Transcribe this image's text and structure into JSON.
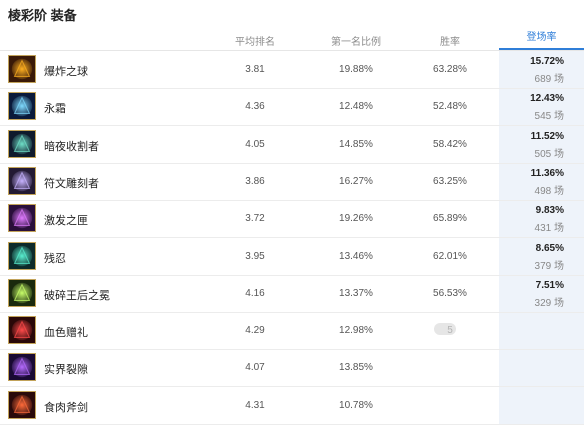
{
  "page": {
    "title": "棱彩阶 装备"
  },
  "columns": {
    "avg_rank": "平均排名",
    "first_rate": "第一名比例",
    "win_rate": "胜率",
    "pick_rate": "登场率"
  },
  "items": [
    {
      "name": "爆炸之球",
      "avg_rank": "3.81",
      "first_rate": "19.88%",
      "win_rate": "63.28%",
      "pick_rate": "15.72%",
      "games": "689 场",
      "icon": "explosion-orb-icon",
      "colors": [
        "#3a1a08",
        "#ffb020"
      ]
    },
    {
      "name": "永霜",
      "avg_rank": "4.36",
      "first_rate": "12.48%",
      "win_rate": "52.48%",
      "pick_rate": "12.43%",
      "games": "545 场",
      "icon": "everfrost-icon",
      "colors": [
        "#0a1a3a",
        "#7fdcff"
      ]
    },
    {
      "name": "暗夜收割者",
      "avg_rank": "4.05",
      "first_rate": "14.85%",
      "win_rate": "58.42%",
      "pick_rate": "11.52%",
      "games": "505 场",
      "icon": "night-harvester-icon",
      "colors": [
        "#0f1a2c",
        "#6fe0c8"
      ]
    },
    {
      "name": "符文雕刻者",
      "avg_rank": "3.86",
      "first_rate": "16.27%",
      "win_rate": "63.25%",
      "pick_rate": "11.36%",
      "games": "498 场",
      "icon": "runecarver-icon",
      "colors": [
        "#231a33",
        "#c7b3ff"
      ]
    },
    {
      "name": "激发之匣",
      "avg_rank": "3.72",
      "first_rate": "19.26%",
      "win_rate": "65.89%",
      "pick_rate": "9.83%",
      "games": "431 场",
      "icon": "radiant-box-icon",
      "colors": [
        "#2a0f3a",
        "#e07bff"
      ]
    },
    {
      "name": "残忍",
      "avg_rank": "3.95",
      "first_rate": "13.46%",
      "win_rate": "62.01%",
      "pick_rate": "8.65%",
      "games": "379 场",
      "icon": "cruelty-icon",
      "colors": [
        "#0d2a2a",
        "#59f0d0"
      ]
    },
    {
      "name": "破碎王后之冕",
      "avg_rank": "4.16",
      "first_rate": "13.37%",
      "win_rate": "56.53%",
      "pick_rate": "7.51%",
      "games": "329 场",
      "icon": "shattered-crown-icon",
      "colors": [
        "#1a2a0d",
        "#c8ff6a"
      ]
    },
    {
      "name": "血色赠礼",
      "avg_rank": "4.29",
      "first_rate": "12.98%",
      "win_rate": "5",
      "pick_rate": "",
      "games": "",
      "icon": "blood-gift-icon",
      "colors": [
        "#2a0808",
        "#ff4a4a"
      ]
    },
    {
      "name": "实界裂隙",
      "avg_rank": "4.07",
      "first_rate": "13.85%",
      "win_rate": "",
      "pick_rate": "",
      "games": "",
      "icon": "realm-rift-icon",
      "colors": [
        "#1a0a33",
        "#b56bff"
      ]
    },
    {
      "name": "食肉斧剑",
      "avg_rank": "4.31",
      "first_rate": "10.78%",
      "win_rate": "",
      "pick_rate": "",
      "games": "",
      "icon": "carnivore-axe-icon",
      "colors": [
        "#2a0a0a",
        "#ff6b3a"
      ]
    }
  ]
}
